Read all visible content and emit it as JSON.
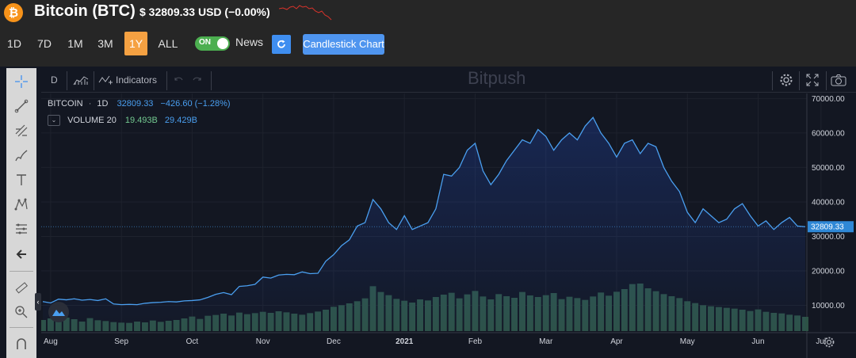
{
  "header": {
    "coin_symbol_glyph": "₿",
    "coin_name": "Bitcoin (BTC)",
    "price_text": "$ 32809.33 USD (−0.00%)"
  },
  "ranges": [
    {
      "label": "1D",
      "active": false
    },
    {
      "label": "7D",
      "active": false
    },
    {
      "label": "1M",
      "active": false
    },
    {
      "label": "3M",
      "active": false
    },
    {
      "label": "1Y",
      "active": true
    },
    {
      "label": "ALL",
      "active": false
    }
  ],
  "controls": {
    "toggle_label": "ON",
    "news_label": "News",
    "candlestick_label": "Candlestick Chart"
  },
  "chart_toolbar": {
    "interval": "D",
    "indicators_label": "Indicators",
    "watermark": "Bitpush"
  },
  "legend": {
    "symbol": "BITCOIN",
    "interval": "1D",
    "last": "32809.33",
    "change": "−426.60 (−1.28%)",
    "volume_label": "VOLUME 20",
    "volume_a": "19.493B",
    "volume_b": "29.429B"
  },
  "colors": {
    "accent_orange": "#f5a142",
    "line_blue": "#4a9ff0",
    "toggle_green": "#4caf50",
    "volume_green": "#3d6657",
    "price_label_bg": "#2f88d6",
    "sparkline_red": "#d9332b",
    "vol_legend_green": "#73c990"
  },
  "chart_data": {
    "type": "area",
    "series": [
      {
        "values": [
          11100,
          10700,
          11800,
          11600,
          11900,
          11500,
          11700,
          11400,
          11900,
          10400,
          10200,
          10300,
          10200,
          10600,
          10800,
          10900,
          11100,
          11000,
          11300,
          11400,
          11600,
          12300,
          13200,
          13700,
          13100,
          15500,
          15700,
          16100,
          18200,
          17900,
          18800,
          19000,
          18900,
          19700,
          19200,
          19300,
          22800,
          24700,
          27300,
          29000,
          33000,
          34000,
          40700,
          38000,
          34000,
          32000,
          36000,
          32000,
          33000,
          34000,
          38000,
          48000,
          47500,
          50000,
          55000,
          57000,
          49000,
          45000,
          48000,
          52000,
          55000,
          58000,
          57000,
          61000,
          59000,
          55000,
          58000,
          60000,
          58000,
          62000,
          64500,
          60000,
          57000,
          53000,
          57000,
          58000,
          54000,
          57000,
          56000,
          50000,
          46000,
          43000,
          37000,
          34000,
          38000,
          36000,
          34000,
          35000,
          38000,
          39500,
          36000,
          33000,
          34500,
          32000,
          34000,
          35500,
          33000,
          32809
        ]
      }
    ],
    "volume": [
      4.2,
      4.8,
      3.9,
      5.1,
      4.5,
      3.6,
      4.9,
      4.1,
      3.8,
      3.4,
      3.2,
      3.1,
      3.6,
      3.3,
      4.0,
      3.5,
      3.9,
      4.2,
      4.8,
      5.5,
      4.6,
      5.8,
      6.1,
      6.6,
      5.9,
      7.0,
      6.4,
      6.8,
      7.3,
      6.9,
      7.5,
      7.1,
      6.6,
      6.2,
      6.8,
      7.4,
      8.1,
      9.2,
      9.8,
      10.5,
      11.3,
      12.4,
      17.0,
      14.8,
      13.6,
      12.2,
      11.5,
      10.8,
      12.0,
      11.6,
      12.9,
      13.8,
      14.5,
      12.4,
      13.9,
      15.2,
      13.1,
      12.0,
      14.0,
      13.2,
      12.6,
      14.8,
      13.5,
      12.9,
      13.6,
      14.4,
      12.1,
      13.0,
      12.5,
      11.8,
      13.1,
      14.6,
      13.4,
      14.9,
      15.9,
      17.8,
      18.0,
      16.2,
      15.1,
      14.0,
      13.2,
      12.5,
      11.3,
      10.6,
      9.8,
      9.4,
      9.1,
      8.8,
      8.5,
      8.1,
      7.6,
      8.2,
      7.3,
      6.9,
      6.7,
      6.2,
      5.9,
      5.4
    ],
    "ylim": [
      3000,
      71000
    ],
    "y_ticks": [
      "70000.00",
      "60000.00",
      "50000.00",
      "40000.00",
      "30000.00",
      "20000.00",
      "10000.00"
    ],
    "y_tick_values": [
      70000,
      60000,
      50000,
      40000,
      30000,
      20000,
      10000
    ],
    "x_ticks": [
      "Aug",
      "Sep",
      "Oct",
      "Nov",
      "Dec",
      "2021",
      "Feb",
      "Mar",
      "Apr",
      "May",
      "Jun",
      "Jul"
    ],
    "x_tick_indices": [
      1,
      10,
      19,
      28,
      37,
      46,
      55,
      64,
      73,
      82,
      91,
      99
    ],
    "last_price_label": "32809.33",
    "last_price_value": 32809.33,
    "grid": true
  }
}
